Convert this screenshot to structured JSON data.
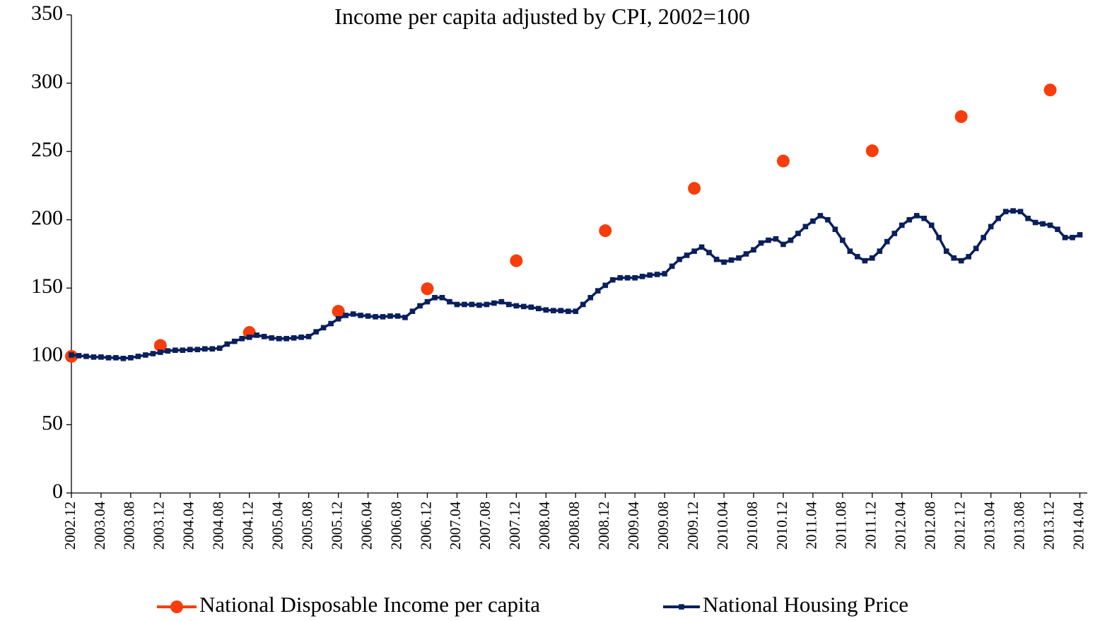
{
  "chart_data": {
    "type": "line",
    "title": "Income per capita adjusted by CPI, 2002=100",
    "categories": [
      "2002.12",
      null,
      null,
      null,
      "2003.04",
      null,
      null,
      null,
      "2003.08",
      null,
      null,
      null,
      "2003.12",
      null,
      null,
      null,
      "2004.04",
      null,
      null,
      null,
      "2004.08",
      null,
      null,
      null,
      "2004.12",
      null,
      null,
      null,
      "2005.04",
      null,
      null,
      null,
      "2005.08",
      null,
      null,
      null,
      "2005.12",
      null,
      null,
      null,
      "2006.04",
      null,
      null,
      null,
      "2006.08",
      null,
      null,
      null,
      "2006.12",
      null,
      null,
      null,
      "2007.04",
      null,
      null,
      null,
      "2007.08",
      null,
      null,
      null,
      "2007.12",
      null,
      null,
      null,
      "2008.04",
      null,
      null,
      null,
      "2008.08",
      null,
      null,
      null,
      "2008.12",
      null,
      null,
      null,
      "2009.04",
      null,
      null,
      null,
      "2009.08",
      null,
      null,
      null,
      "2009.12",
      null,
      null,
      null,
      "2010.04",
      null,
      null,
      null,
      "2010.08",
      null,
      null,
      null,
      "2010.12",
      null,
      null,
      null,
      "2011.04",
      null,
      null,
      null,
      "2011.08",
      null,
      null,
      null,
      "2011.12",
      null,
      null,
      null,
      "2012.04",
      null,
      null,
      null,
      "2012.08",
      null,
      null,
      null,
      "2012.12",
      null,
      null,
      null,
      "2013.04",
      null,
      null,
      null,
      "2013.08",
      null,
      null,
      null,
      "2013.12",
      null,
      null,
      null,
      "2014.04"
    ],
    "series": [
      {
        "name": "National Disposable Income per capita",
        "color": "#f83d0c",
        "marker": "circle",
        "line": false,
        "values": [
          100,
          null,
          null,
          null,
          null,
          null,
          null,
          null,
          null,
          null,
          null,
          null,
          108,
          null,
          null,
          null,
          null,
          null,
          null,
          null,
          null,
          null,
          null,
          null,
          117.5,
          null,
          null,
          null,
          null,
          null,
          null,
          null,
          null,
          null,
          null,
          null,
          133,
          null,
          null,
          null,
          null,
          null,
          null,
          null,
          null,
          null,
          null,
          null,
          149.5,
          null,
          null,
          null,
          null,
          null,
          null,
          null,
          null,
          null,
          null,
          null,
          170,
          null,
          null,
          null,
          null,
          null,
          null,
          null,
          null,
          null,
          null,
          null,
          192,
          null,
          null,
          null,
          null,
          null,
          null,
          null,
          null,
          null,
          null,
          null,
          223,
          null,
          null,
          null,
          null,
          null,
          null,
          null,
          null,
          null,
          null,
          null,
          243,
          null,
          null,
          null,
          null,
          null,
          null,
          null,
          null,
          null,
          null,
          null,
          250.5,
          null,
          null,
          null,
          null,
          null,
          null,
          null,
          null,
          null,
          null,
          null,
          275.5,
          null,
          null,
          null,
          null,
          null,
          null,
          null,
          null,
          null,
          null,
          null,
          295,
          null,
          null,
          null,
          null
        ]
      },
      {
        "name": "National Housing Price",
        "color": "#0a1f5c",
        "marker": "square",
        "line": true,
        "values": [
          101,
          100.5,
          100,
          99.5,
          99.5,
          99,
          99,
          98.5,
          99,
          100,
          101,
          102,
          103,
          104,
          104.5,
          104.5,
          105,
          105,
          105.5,
          105.5,
          106,
          109,
          111,
          113,
          114,
          115.5,
          114.5,
          113.5,
          113,
          113,
          113.5,
          114,
          114.5,
          118,
          121,
          124,
          127.5,
          130,
          131,
          130,
          129.5,
          129,
          129,
          129.5,
          129.5,
          128.5,
          133,
          137,
          140,
          143,
          143,
          140,
          138,
          138,
          138,
          137.5,
          138,
          139,
          140,
          138,
          137,
          136.5,
          136,
          135,
          134,
          133.5,
          133.5,
          133,
          133,
          138,
          143,
          148,
          152,
          156,
          157.5,
          157.5,
          157.5,
          158.5,
          159.5,
          160,
          160.5,
          166,
          171,
          174,
          177,
          180,
          176,
          171,
          169,
          170.5,
          172,
          175,
          178,
          183,
          185,
          186,
          182,
          185,
          190,
          195,
          199,
          203,
          200,
          193,
          185,
          177,
          173,
          170,
          172,
          177,
          184,
          190,
          196,
          200,
          203,
          201,
          196,
          187,
          177,
          172,
          170,
          173,
          179,
          187,
          195,
          201,
          206,
          206.5,
          206,
          201,
          198,
          197,
          196,
          193,
          187,
          187,
          189
        ]
      }
    ],
    "ylim": [
      0,
      350
    ],
    "yticks": [
      0,
      50,
      100,
      150,
      200,
      250,
      300,
      350
    ],
    "grid": false
  }
}
